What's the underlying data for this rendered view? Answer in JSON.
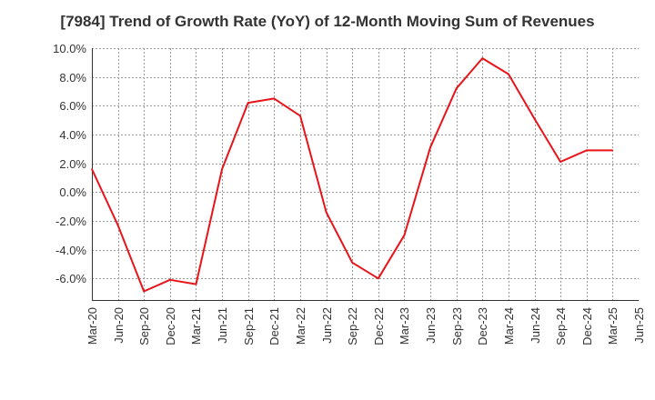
{
  "chart_data": {
    "type": "line",
    "title": "[7984]  Trend of Growth Rate (YoY) of 12-Month Moving Sum of Revenues",
    "xlabel": "",
    "ylabel": "",
    "x_ticks": [
      "Mar-20",
      "Jun-20",
      "Sep-20",
      "Dec-20",
      "Mar-21",
      "Jun-21",
      "Sep-21",
      "Dec-21",
      "Mar-22",
      "Jun-22",
      "Sep-22",
      "Dec-22",
      "Mar-23",
      "Jun-23",
      "Sep-23",
      "Dec-23",
      "Mar-24",
      "Jun-24",
      "Sep-24",
      "Dec-24",
      "Mar-25",
      "Jun-25"
    ],
    "y_ticks": [
      "10.0%",
      "8.0%",
      "6.0%",
      "4.0%",
      "2.0%",
      "0.0%",
      "-2.0%",
      "-4.0%",
      "-6.0%"
    ],
    "ylim": [
      -7.5,
      10.0
    ],
    "y_unit": "%",
    "grid": true,
    "line_color": "#e8141a",
    "series": [
      {
        "x": [
          "Mar-20",
          "Jun-20",
          "Sep-20",
          "Dec-20",
          "Mar-21",
          "Jun-21",
          "Sep-21",
          "Dec-21",
          "Mar-22",
          "Jun-22",
          "Sep-22",
          "Dec-22",
          "Mar-23",
          "Jun-23",
          "Sep-23",
          "Dec-23",
          "Mar-24",
          "Jun-24",
          "Sep-24",
          "Dec-24",
          "Mar-25"
        ],
        "values": [
          1.6,
          -2.3,
          -6.9,
          -6.1,
          -6.4,
          1.6,
          6.2,
          6.5,
          5.3,
          -1.4,
          -4.9,
          -6.0,
          -3.0,
          3.1,
          7.2,
          9.3,
          8.2,
          5.1,
          2.1,
          2.9,
          2.9
        ]
      }
    ]
  }
}
